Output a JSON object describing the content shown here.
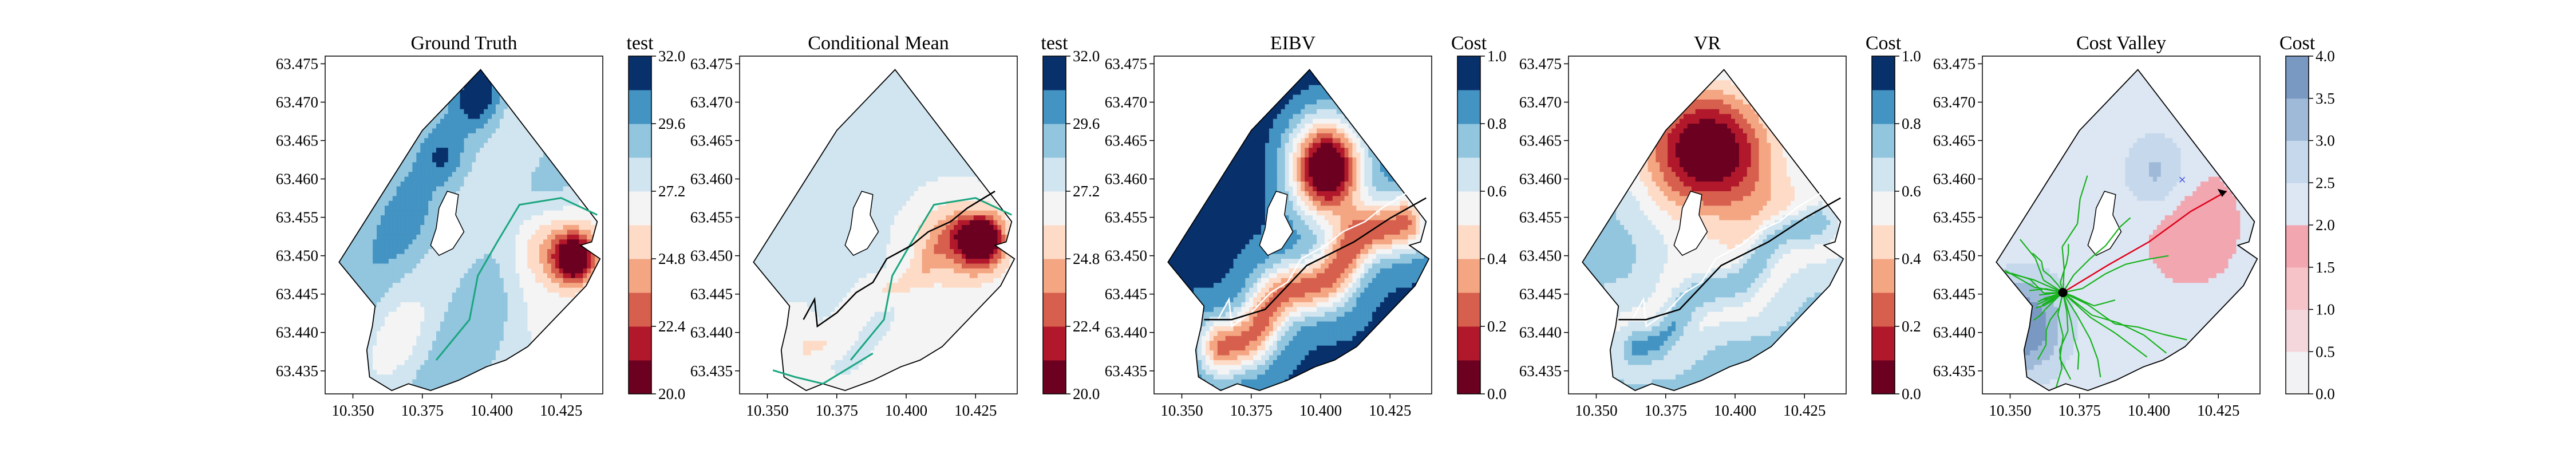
{
  "palettes": {
    "rdbu_10": [
      "#6b0020",
      "#b2182b",
      "#d6604d",
      "#f4a582",
      "#fddbc7",
      "#f4f4f4",
      "#d1e5f0",
      "#92c5de",
      "#4393c3",
      "#08306b"
    ],
    "cost_valley_8": [
      "#f2f2f4",
      "#f4d7dc",
      "#f6c3c8",
      "#f2a6b0",
      "#dde7f3",
      "#c6d8ec",
      "#9fbad8",
      "#7a99c2"
    ],
    "contour_green": "#1aa680",
    "path_color": "#000000",
    "tree_green": "#17b21c",
    "tree_red": "#e0001a",
    "marker_blue": "#2b3bd8",
    "frame_color": "#000000"
  },
  "chart_data": [
    {
      "type": "heatmap",
      "title": "Ground Truth",
      "colorbar_label": "test",
      "colorbar_ticks": [
        "20.0",
        "22.4",
        "24.8",
        "27.2",
        "29.6",
        "32.0"
      ],
      "x_ticks": [
        "10.350",
        "10.375",
        "10.400",
        "10.425"
      ],
      "y_ticks": [
        "63.475",
        "63.470",
        "63.465",
        "63.460",
        "63.455",
        "63.450",
        "63.445",
        "63.440",
        "63.435"
      ],
      "xlim": [
        10.34,
        10.44
      ],
      "ylim": [
        63.432,
        63.476
      ],
      "field": "ground_truth",
      "palette": "rdbu_10",
      "overlays": [
        "green_contour"
      ]
    },
    {
      "type": "heatmap",
      "title": "Conditional Mean",
      "colorbar_label": "test",
      "colorbar_ticks": [
        "20.0",
        "22.4",
        "24.8",
        "27.2",
        "29.6",
        "32.0"
      ],
      "x_ticks": [
        "10.350",
        "10.375",
        "10.400",
        "10.425"
      ],
      "y_ticks": [
        "63.475",
        "63.470",
        "63.465",
        "63.460",
        "63.455",
        "63.450",
        "63.445",
        "63.440",
        "63.435"
      ],
      "xlim": [
        10.34,
        10.44
      ],
      "ylim": [
        63.432,
        63.476
      ],
      "field": "cond_mean",
      "palette": "rdbu_10",
      "overlays": [
        "green_contour",
        "path"
      ]
    },
    {
      "type": "heatmap",
      "title": "EIBV",
      "colorbar_label": "Cost",
      "colorbar_ticks": [
        "0.0",
        "0.2",
        "0.4",
        "0.6",
        "0.8",
        "1.0"
      ],
      "x_ticks": [
        "10.350",
        "10.375",
        "10.400",
        "10.425"
      ],
      "y_ticks": [
        "63.475",
        "63.470",
        "63.465",
        "63.460",
        "63.455",
        "63.450",
        "63.445",
        "63.440",
        "63.435"
      ],
      "xlim": [
        10.34,
        10.44
      ],
      "ylim": [
        63.432,
        63.476
      ],
      "field": "eibv",
      "palette": "rdbu_10",
      "overlays": [
        "black_contour"
      ]
    },
    {
      "type": "heatmap",
      "title": "VR",
      "colorbar_label": "Cost",
      "colorbar_ticks": [
        "0.0",
        "0.2",
        "0.4",
        "0.6",
        "0.8",
        "1.0"
      ],
      "x_ticks": [
        "10.350",
        "10.375",
        "10.400",
        "10.425"
      ],
      "y_ticks": [
        "63.475",
        "63.470",
        "63.465",
        "63.460",
        "63.455",
        "63.450",
        "63.445",
        "63.440",
        "63.435"
      ],
      "xlim": [
        10.34,
        10.44
      ],
      "ylim": [
        63.432,
        63.476
      ],
      "field": "vr",
      "palette": "rdbu_10",
      "overlays": [
        "black_contour"
      ]
    },
    {
      "type": "heatmap",
      "title": "Cost Valley",
      "colorbar_label": "Cost",
      "colorbar_ticks": [
        "0.0",
        "0.5",
        "1.0",
        "1.5",
        "2.0",
        "2.5",
        "3.0",
        "3.5",
        "4.0"
      ],
      "x_ticks": [
        "10.350",
        "10.375",
        "10.400",
        "10.425"
      ],
      "y_ticks": [
        "63.475",
        "63.470",
        "63.465",
        "63.460",
        "63.455",
        "63.450",
        "63.445",
        "63.440",
        "63.435"
      ],
      "xlim": [
        10.34,
        10.44
      ],
      "ylim": [
        63.432,
        63.476
      ],
      "field": "cost_valley",
      "palette": "cost_valley_8",
      "overlays": [
        "tree"
      ]
    }
  ]
}
